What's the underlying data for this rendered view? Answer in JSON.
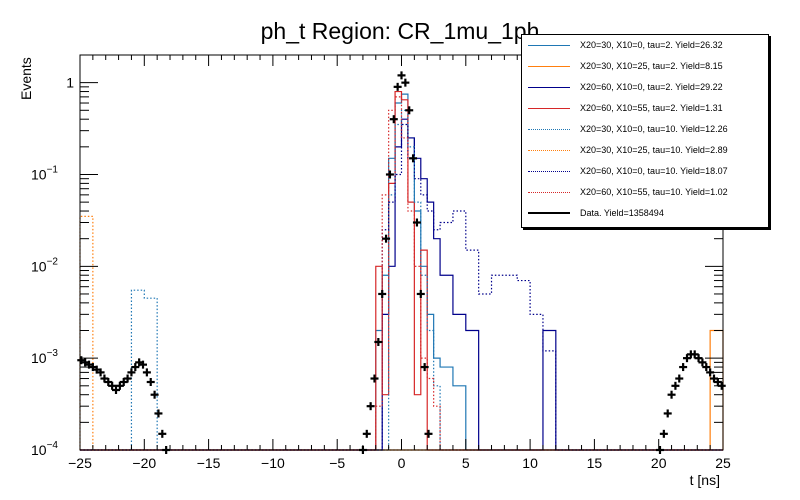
{
  "chart_data": {
    "type": "line",
    "title": "ph_t Region: CR_1mu_1ph",
    "xlabel": "t [ns]",
    "ylabel": "Events",
    "xlim": [
      -25,
      25
    ],
    "ylim": [
      0.0001,
      2
    ],
    "yscale": "log",
    "x_ticks": [
      {
        "value": -25,
        "label": "−25"
      },
      {
        "value": -20,
        "label": "−20"
      },
      {
        "value": -15,
        "label": "−15"
      },
      {
        "value": -10,
        "label": "−10"
      },
      {
        "value": -5,
        "label": "−5"
      },
      {
        "value": 0,
        "label": "0"
      },
      {
        "value": 5,
        "label": "5"
      },
      {
        "value": 10,
        "label": "10"
      },
      {
        "value": 15,
        "label": "15"
      },
      {
        "value": 20,
        "label": "20"
      },
      {
        "value": 25,
        "label": "25"
      }
    ],
    "y_ticks": [
      {
        "value": 1,
        "base": "1",
        "exp": ""
      },
      {
        "value": 0.1,
        "base": "10",
        "exp": "−1"
      },
      {
        "value": 0.01,
        "base": "10",
        "exp": "−2"
      },
      {
        "value": 0.001,
        "base": "10",
        "exp": "−3"
      },
      {
        "value": 0.0001,
        "base": "10",
        "exp": "−4"
      }
    ],
    "bin_edges": [
      -25,
      -24,
      -23,
      -22,
      -21,
      -20,
      -19,
      -18,
      -17,
      -16,
      -15,
      -14,
      -13,
      -12,
      -11,
      -10,
      -9,
      -8,
      -7,
      -6,
      -5,
      -4,
      -3,
      -2,
      -1.5,
      -1,
      -0.5,
      0,
      0.5,
      1,
      1.5,
      2,
      2.5,
      3,
      4,
      5,
      6,
      7,
      8,
      9,
      10,
      11,
      12,
      13,
      14,
      15,
      16,
      17,
      18,
      19,
      20,
      21,
      22,
      23,
      24,
      25
    ],
    "series": [
      {
        "name": "X20=30, X10=0, tau=2. Yield=26.32",
        "color": "#1f77b4",
        "style": "solid",
        "values": [
          0,
          0,
          0,
          0,
          0,
          0,
          0,
          0,
          0,
          0,
          0,
          0,
          0,
          0,
          0,
          0,
          0,
          0,
          0,
          0,
          0,
          0,
          0,
          0.002,
          0.008,
          0.15,
          0.6,
          0.75,
          0.25,
          0.04,
          0.01,
          0.003,
          0.001,
          0.0008,
          0.0005,
          0,
          0,
          0,
          0,
          0,
          0,
          0,
          0,
          0,
          0,
          0,
          0,
          0,
          0,
          0,
          0,
          0,
          0,
          0,
          0
        ]
      },
      {
        "name": "X20=30, X10=25, tau=2. Yield=8.15",
        "color": "#ff7f0e",
        "style": "solid",
        "values": [
          0,
          0,
          0,
          0,
          0,
          0,
          0,
          0,
          0,
          0,
          0,
          0,
          0,
          0,
          0,
          0,
          0,
          0,
          0,
          0,
          0,
          0,
          0,
          0,
          0,
          0,
          0,
          0,
          0,
          0,
          0,
          0,
          0,
          0,
          0,
          0,
          0,
          0,
          0,
          0,
          0,
          0,
          0,
          0,
          0,
          0,
          0,
          0,
          0,
          0,
          0,
          0,
          0,
          0,
          0.002
        ]
      },
      {
        "name": "X20=60, X10=0, tau=2. Yield=29.22",
        "color": "#00008b",
        "style": "solid",
        "values": [
          0,
          0,
          0,
          0,
          0,
          0,
          0,
          0,
          0,
          0,
          0,
          0,
          0,
          0,
          0,
          0,
          0,
          0,
          0,
          0,
          0,
          0,
          0,
          0,
          0.003,
          0.01,
          0.2,
          0.4,
          0.25,
          0.15,
          0.09,
          0.05,
          0.02,
          0.008,
          0.003,
          0.002,
          0,
          0,
          0,
          0,
          0,
          0.002,
          0,
          0,
          0,
          0,
          0,
          0,
          0,
          0,
          0,
          0,
          0,
          0,
          0
        ]
      },
      {
        "name": "X20=60, X10=55, tau=2. Yield=1.31",
        "color": "#d62728",
        "style": "solid",
        "values": [
          0,
          0,
          0,
          0,
          0,
          0,
          0,
          0,
          0,
          0,
          0,
          0,
          0,
          0,
          0,
          0,
          0,
          0,
          0,
          0,
          0,
          0,
          0,
          0.01,
          0.0004,
          0.08,
          0.8,
          0.65,
          0.05,
          0.0004,
          0.015,
          0,
          0,
          0,
          0,
          0,
          0,
          0,
          0,
          0,
          0,
          0,
          0,
          0,
          0,
          0,
          0,
          0,
          0,
          0,
          0,
          0,
          0,
          0,
          0
        ]
      },
      {
        "name": "X20=30, X10=0, tau=10. Yield=12.26",
        "color": "#1f77b4",
        "style": "dotted",
        "values": [
          0,
          0,
          0,
          0,
          0.0055,
          0.0045,
          0,
          0,
          0,
          0,
          0,
          0,
          0,
          0,
          0,
          0,
          0,
          0,
          0,
          0,
          0,
          0,
          0,
          0,
          0,
          0.06,
          0.35,
          0.5,
          0.2,
          0.05,
          0.008,
          0.002,
          0.0005,
          0,
          0,
          0,
          0,
          0,
          0,
          0,
          0,
          0,
          0,
          0,
          0,
          0,
          0,
          0,
          0,
          0,
          0,
          0,
          0,
          0,
          0
        ]
      },
      {
        "name": "X20=30, X10=25, tau=10. Yield=2.89",
        "color": "#ff7f0e",
        "style": "dotted",
        "values": [
          0.035,
          0,
          0,
          0,
          0,
          0,
          0,
          0,
          0,
          0,
          0,
          0,
          0,
          0,
          0,
          0,
          0,
          0,
          0,
          0,
          0,
          0,
          0,
          0,
          0,
          0,
          0,
          0,
          0,
          0,
          0,
          0,
          0,
          0,
          0,
          0,
          0,
          0,
          0,
          0,
          0,
          0,
          0,
          0,
          0,
          0,
          0,
          0,
          0,
          0,
          0,
          0,
          0,
          0,
          0
        ]
      },
      {
        "name": "X20=60, X10=0, tau=10. Yield=18.07",
        "color": "#00008b",
        "style": "dotted",
        "values": [
          0,
          0,
          0,
          0,
          0,
          0,
          0,
          0,
          0,
          0,
          0,
          0,
          0,
          0,
          0,
          0,
          0,
          0,
          0,
          0,
          0,
          0,
          0,
          0,
          0.025,
          0.05,
          0.1,
          0.35,
          0.15,
          0.09,
          0.06,
          0.04,
          0.025,
          0.03,
          0.04,
          0.015,
          0.005,
          0.008,
          0.008,
          0.007,
          0.003,
          0.0012,
          0,
          0,
          0,
          0,
          0,
          0,
          0,
          0,
          0,
          0,
          0,
          0,
          0
        ]
      },
      {
        "name": "X20=60, X10=55, tau=10. Yield=1.02",
        "color": "#d62728",
        "style": "dotted",
        "values": [
          0,
          0,
          0,
          0,
          0,
          0,
          0,
          0,
          0,
          0,
          0,
          0,
          0,
          0,
          0,
          0,
          0,
          0,
          0,
          0,
          0,
          0,
          0,
          0.0003,
          0.06,
          0.5,
          0.7,
          0.25,
          0.04,
          0.01,
          0.001,
          0.0006,
          0.0003,
          0,
          0,
          0,
          0,
          0,
          0,
          0,
          0,
          0,
          0,
          0,
          0,
          0,
          0,
          0,
          0,
          0,
          0,
          0,
          0,
          0,
          0
        ]
      },
      {
        "name": "Data. Yield=1358494",
        "color": "#000000",
        "style": "markers",
        "points": [
          [
            -24.9,
            0.00095
          ],
          [
            -24.6,
            0.0009
          ],
          [
            -24.3,
            0.00085
          ],
          [
            -24.0,
            0.0008
          ],
          [
            -23.7,
            0.00075
          ],
          [
            -23.4,
            0.0007
          ],
          [
            -23.1,
            0.0006
          ],
          [
            -22.8,
            0.00055
          ],
          [
            -22.5,
            0.0005
          ],
          [
            -22.2,
            0.00045
          ],
          [
            -21.9,
            0.0005
          ],
          [
            -21.6,
            0.00055
          ],
          [
            -21.3,
            0.0006
          ],
          [
            -21.0,
            0.0007
          ],
          [
            -20.7,
            0.0008
          ],
          [
            -20.4,
            0.0009
          ],
          [
            -20.1,
            0.00085
          ],
          [
            -19.8,
            0.0007
          ],
          [
            -19.5,
            0.00055
          ],
          [
            -19.2,
            0.0004
          ],
          [
            -18.9,
            0.00025
          ],
          [
            -18.6,
            0.00015
          ],
          [
            -18.3,
            0.0001
          ],
          [
            -3.0,
            0.0001
          ],
          [
            -2.7,
            0.00015
          ],
          [
            -2.4,
            0.0003
          ],
          [
            -2.1,
            0.0006
          ],
          [
            -1.8,
            0.0015
          ],
          [
            -1.5,
            0.005
          ],
          [
            -1.2,
            0.02
          ],
          [
            -0.9,
            0.1
          ],
          [
            -0.6,
            0.4
          ],
          [
            -0.3,
            0.9
          ],
          [
            0.0,
            1.2
          ],
          [
            0.3,
            1.0
          ],
          [
            0.6,
            0.5
          ],
          [
            0.9,
            0.15
          ],
          [
            1.2,
            0.03
          ],
          [
            1.5,
            0.005
          ],
          [
            1.8,
            0.0008
          ],
          [
            2.1,
            0.00015
          ],
          [
            20.1,
            0.0001
          ],
          [
            20.4,
            0.00015
          ],
          [
            20.7,
            0.00025
          ],
          [
            21.0,
            0.0004
          ],
          [
            21.3,
            0.0005
          ],
          [
            21.6,
            0.0006
          ],
          [
            21.9,
            0.0008
          ],
          [
            22.2,
            0.001
          ],
          [
            22.5,
            0.0011
          ],
          [
            22.8,
            0.0011
          ],
          [
            23.1,
            0.001
          ],
          [
            23.4,
            0.0009
          ],
          [
            23.7,
            0.0008
          ],
          [
            24.0,
            0.0007
          ],
          [
            24.3,
            0.0006
          ],
          [
            24.6,
            0.00055
          ],
          [
            24.9,
            0.0005
          ]
        ]
      }
    ]
  }
}
